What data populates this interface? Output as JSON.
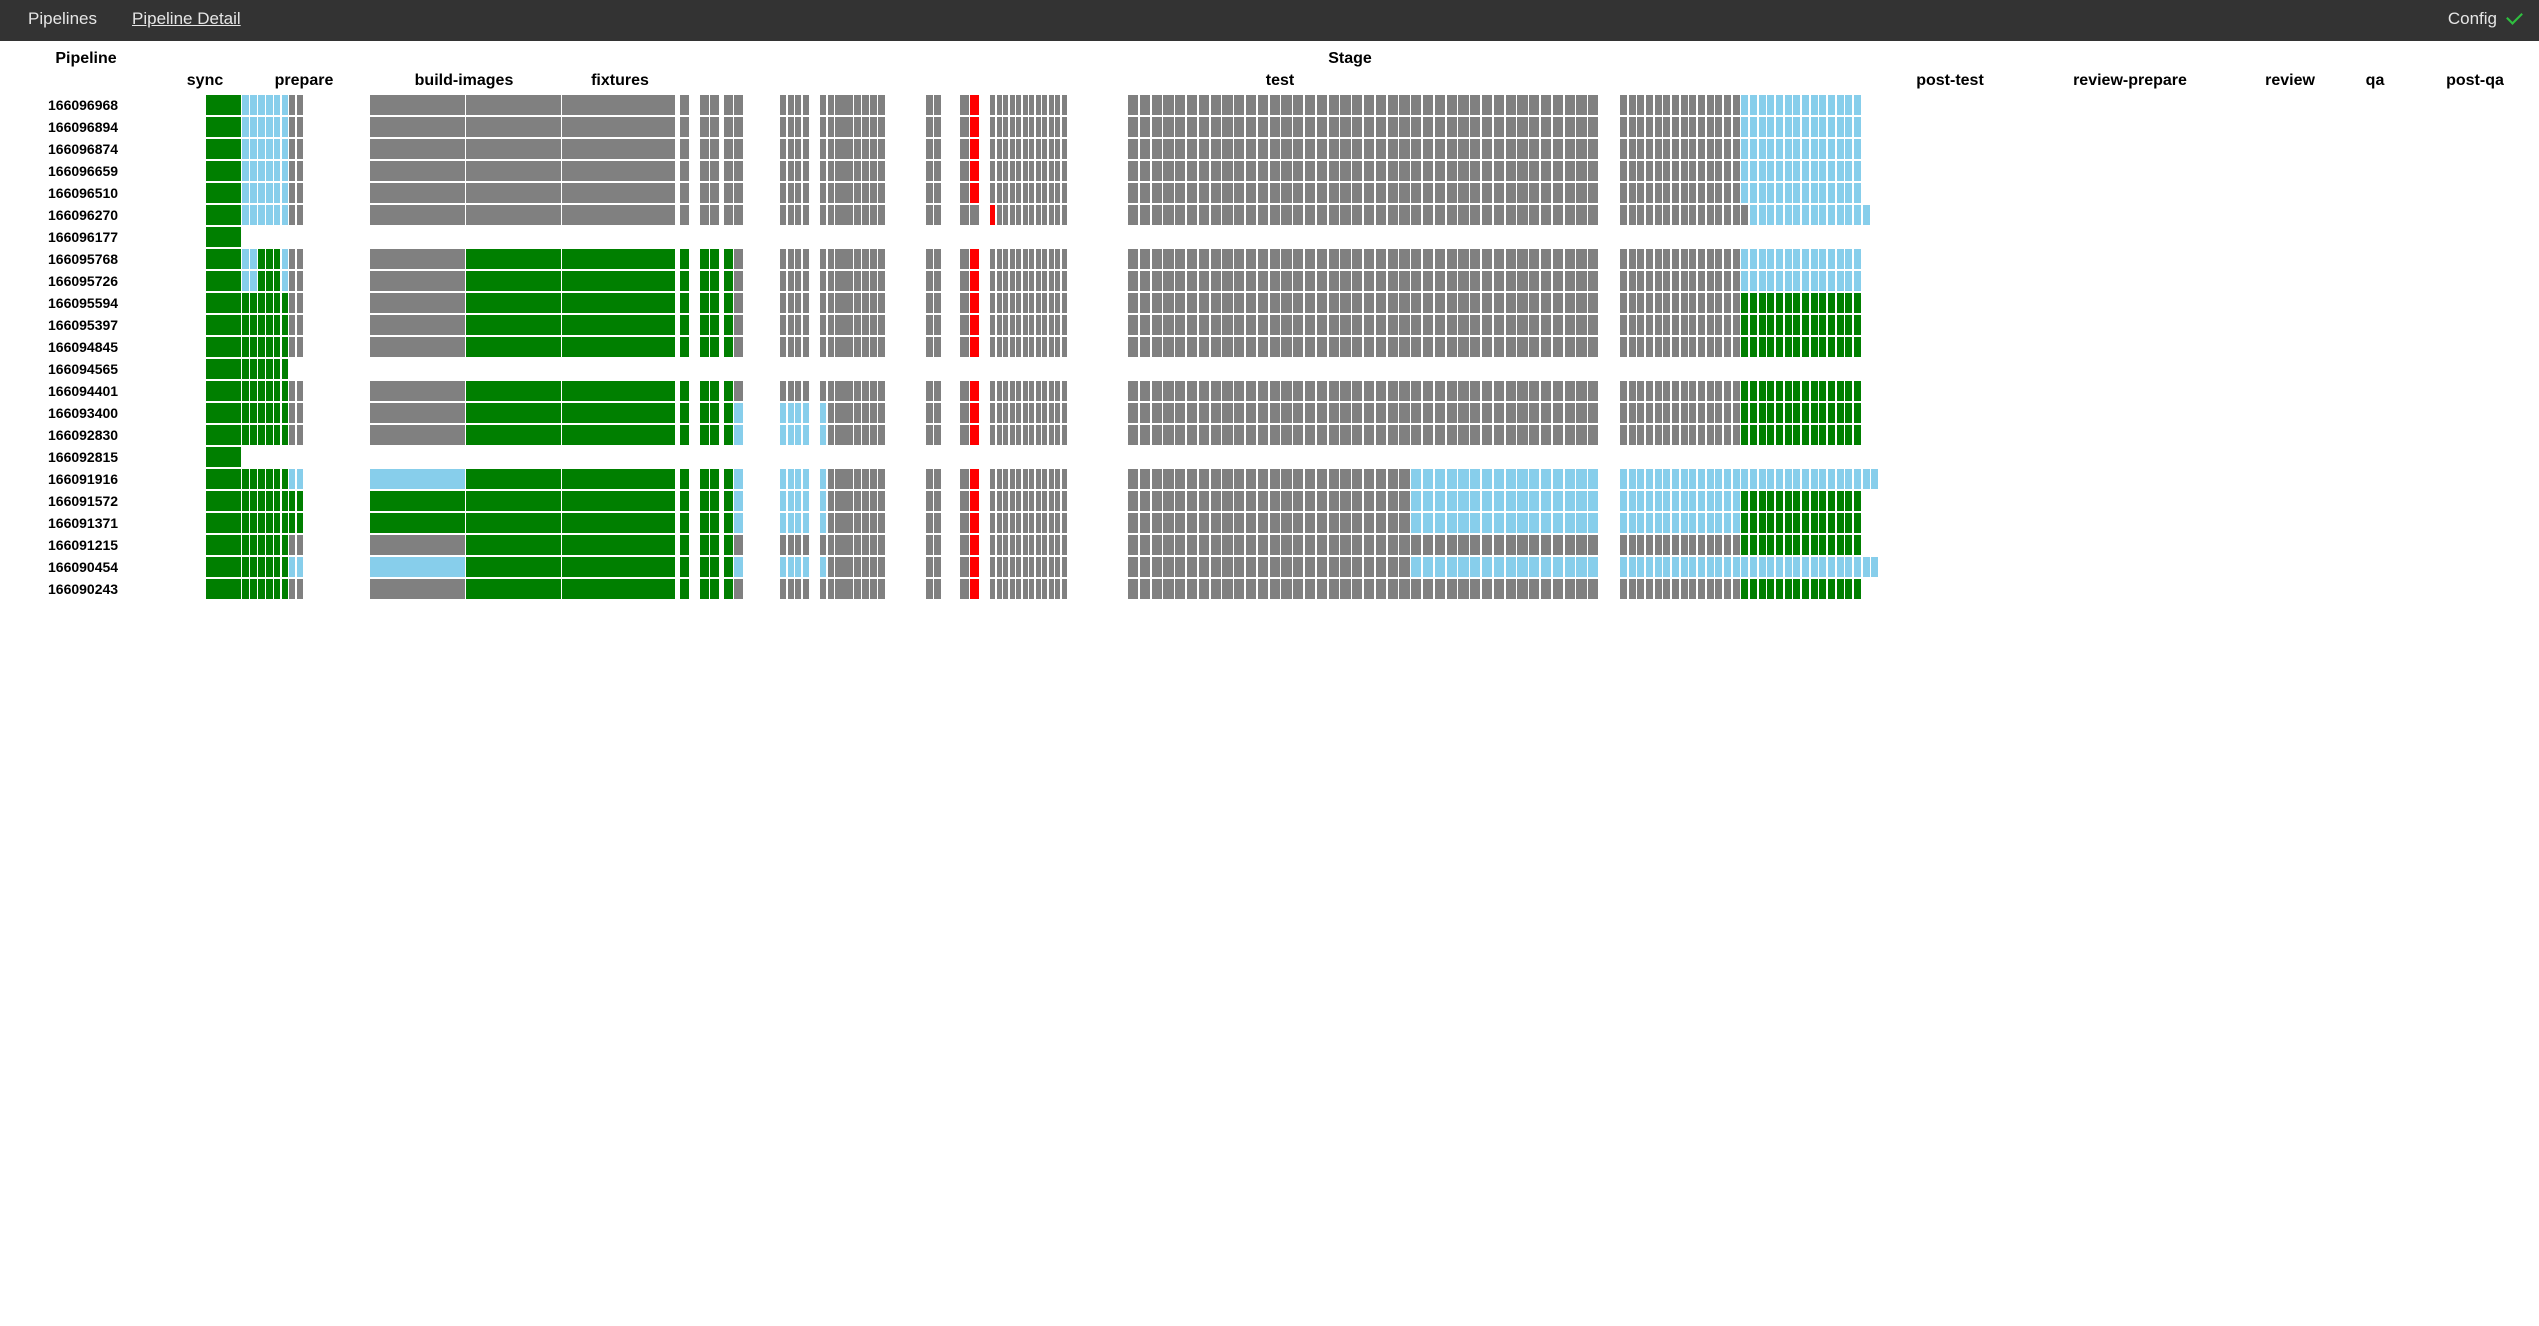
{
  "nav": {
    "links": [
      "Pipelines",
      "Pipeline Detail"
    ],
    "config_label": "Config"
  },
  "headers": {
    "pipeline": "Pipeline",
    "stage": "Stage"
  },
  "stages": [
    "sync",
    "prepare",
    "build-images",
    "fixtures",
    "test",
    "post-test",
    "review-prepare",
    "review",
    "qa",
    "post-qa"
  ],
  "colors": {
    "success": "#007f00",
    "skipped": "#808080",
    "manual": "#87ceeb",
    "failed": "#ff0000",
    "background": "#ffffff",
    "navbar": "#333333",
    "check": "#2fbf3f"
  },
  "pipelines": [
    {
      "id": "166096968",
      "row": "SMMMMMMPPPGGGGGGCCCCCCNNNNNNNNNNPPXPPYYYYYYYYYYYYYYYYYYYYYYYYYYYYYYYYYYRRRRRRRRRRRRRRRRRRRRRRRRRRRRRRMMMMMMMMMMMMMM"
    },
    {
      "id": "166096894",
      "row": "SMMMMMMPPPGGGGGGCCCCCCNNNNNNNNNNPPXPPYYYYYYYYYYYYYYYYYYYYYYYYYYYYYYYYYYRRRRRRRRRRRRRRRRRRRRRRRRRRRRRRMMMMMMMMMMMMMM"
    },
    {
      "id": "166096874",
      "row": "SMMMMMMPPPGGGGGGCCCCCCNNNNNNNNNNPPXPPYYYYYYYYYYYYYYYYYYYYYYYYYYYYYYYYYYRRRRRRRRRRRRRRRRRRRRRRRRRRRRRRMMMMMMMMMMMMMM"
    },
    {
      "id": "166096659",
      "row": "SMMMMMMPPPGGGGGGCCCCCCNNNNNNNNNNPPXPPYYYYYYYYYYYYYYYYYYYYYYYYYYYYYYYYYYRRRRRRRRRRRRRRRRRRRRRRRRRRRRRRMMMMMMMMMMMMMM"
    },
    {
      "id": "166096510",
      "row": "SMMMMMMPPPGGGGGGCCCCCCNNNNNNNNNNPPXPPYYYYYYYYYYYYYYYYYYYYYYYYYYYYYYYYYYRRRRRRRRRRRRRRRRRRRRRRRRRRRRRRMMMMMMMMMMMMMM"
    },
    {
      "id": "166096270",
      "row": "SMMMMMMPPPGGGGGGGCCCCCCNNNNNNNNNNPPXPPYYYYYYYYYYYYYYYYYYYYYYYYYYYYYYYYYYRRRRRRRRRRRRRRRRRRRRRRRRRRRRRRMMMMMMMMMMMMMM"
    },
    {
      "id": "166096177",
      "row": "S"
    },
    {
      "id": "166095768",
      "row": "SMMSSSMPPPSSSSSSCCCCCCNNNNNNNNNNPPXPPYYYYYYYYYYYYYYYYYYYYYYYYYYYYYYYYYYRRRRRRRRRRRRRRRRRRRRRRRRRRRRRRMMMMMMMMMMMMMM"
    },
    {
      "id": "166095726",
      "row": "SMMSSSMPPPSSSSSSCCCCCCNNNNNNNNNNPPXPPYYYYYYYYYYYYYYYYYYYYYYYYYYYYYYYYYYRRRRRRRRRRRRRRRRRRRRRRRRRRRRRRMMMMMMMMMMMMMM"
    },
    {
      "id": "166095594",
      "row": "SSSSSSSPPPSSSSSSCCCCCCNNNNNNNNNNPPXPPYYYYYYYYYYYYYYYYYYYYYYYYYYYYYYYYYYRRRRRRRRRRRRRRRRRRRRRRRRRRRRRRSSSSSSSSSSSSSS"
    },
    {
      "id": "166095397",
      "row": "SSSSSSSPPPSSSSSSCCCCCCNNNNNNNNNNPPXPPYYYYYYYYYYYYYYYYYYYYYYYYYYYYYYYYYYRRRRRRRRRRRRRRRRRRRRRRRRRRRRRRSSSSSSSSSSSSSS"
    },
    {
      "id": "166094845",
      "row": "SSSSSSSPPPSSSSSSCCCCCCNNNNNNNNNNPPXPPYYYYYYYYYYYYYYYYYYYYYYYYYYYYYYYYYYRRRRRRRRRRRRRRRRRRRRRRRRRRRRRRSSSSSSSSSSSSSS"
    },
    {
      "id": "166094565",
      "row": "SSSSSSS"
    },
    {
      "id": "166094401",
      "row": "SSSSSSSPPPSSSSSSCCCCCCNNNNNNNNNNPPXPPYYYYYYYYYYYYYYYYYYYYYYYYYYYYYYYYYYRRRRRRRRRRRRRRRRRRRRRRRRRRRRRRSSSSSSSSSSSSSS"
    },
    {
      "id": "166093400",
      "row": "SSSSSSSPPPSSSSSSMMMMMMNNNNNNNNNNPPXPPYYYYYYYYYYYYYYYYYYYYYYYYYYYYYYYYYYRRRRRRRRRRRRRRRRRRRRRRRRRRRRRRSSSSSSSSSSSSSS"
    },
    {
      "id": "166092830",
      "row": "SSSSSSSPPPSSSSSSMMMMMMNNNNNNNNNNPPXPPYYYYYYYYYYYYYYYYYYYYYYYYYYYYYYYYYYRRRRRRRRRRRRRRRRRRRRRRRRRRRRRRSSSSSSSSSSSSSS"
    },
    {
      "id": "166092815",
      "row": "S"
    },
    {
      "id": "166091916",
      "row": "SSSSSSSMMMSSSSSSMMMMMMNNNNNNNNNNPPXPPYYYYYYYYYYYYYYYYYYYYYYYYYYYYYYYYYYMMMMMMMMMMMMMMMMMMMMMMMMMMMMMMMMMMMMMMMMMMMMMM"
    },
    {
      "id": "166091572",
      "row": "SSSSSSSSSSSSSSSSMMMMMMNNNNNNNNNNPPXPPYYYYYYYYYYYYYYYYYYYYYYYYYYYYYYYYYYMMMMMMMMMMMMMMMMMMMMMMMMMMMMMMSSSSSSSSSSSSSS"
    },
    {
      "id": "166091371",
      "row": "SSSSSSSSSSSSSSSSMMMMMMNNNNNNNNNNPPXPPYYYYYYYYYYYYYYYYYYYYYYYYYYYYYYYYYYMMMMMMMMMMMMMMMMMMMMMMMMMMMMMMSSSSSSSSSSSSSS"
    },
    {
      "id": "166091215",
      "row": "SSSSSSSPPPSSSSSSCCCCCCNNNNNNNNNNPPXPPYYYYYYYYYYYYYYYYYYYYYYYYYYYYYYYYYYRRRRRRRRRRRRRRRRRRRRRRRRRRRRRRSSSSSSSSSSSSSS"
    },
    {
      "id": "166090454",
      "row": "SSSSSSSMMMSSSSSSMMMMMMNNNNNNNNNNPPXPPYYYYYYYYYYYYYYYYYYYYYYYYYYYYYYYYYYMMMMMMMMMMMMMMMMMMMMMMMMMMMMMMMMMMMMMMMMMMMMMM"
    },
    {
      "id": "166090243",
      "row": "SSSSSSSPPPSSSSSSCCCCCCNNNNNNNNNNPPXPPYYYYYYYYYYYYYYYYYYYYYYYYYYYYYYYYYYRRRRRRRRRRRRRRRRRRRRRRRRRRRRRRSSSSSSSSSSSSSS"
    }
  ]
}
